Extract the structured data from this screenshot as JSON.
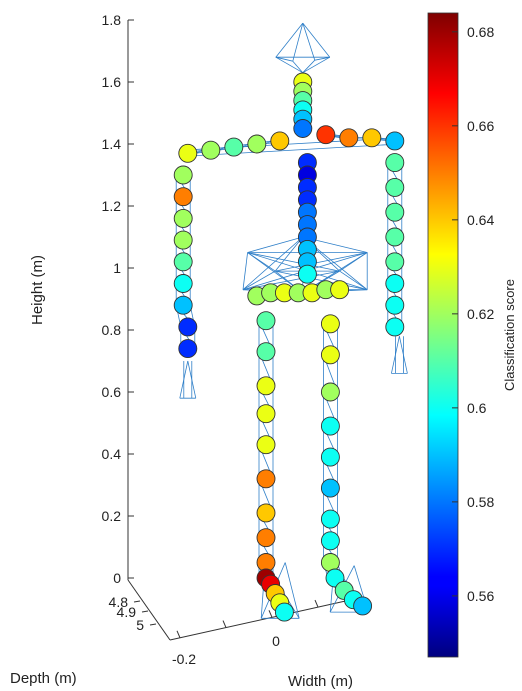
{
  "chart_data": {
    "type": "scatter",
    "subtype": "3d-skeleton-point-cloud",
    "title": "",
    "axes": {
      "z": {
        "label": "Height (m)",
        "range": [
          0,
          1.8
        ],
        "ticks": [
          "0",
          "0.2",
          "0.4",
          "0.6",
          "0.8",
          "1",
          "1.2",
          "1.4",
          "1.6",
          "1.8"
        ],
        "tick_values": [
          0,
          0.2,
          0.4,
          0.6,
          0.8,
          1,
          1.2,
          1.4,
          1.6,
          1.8
        ]
      },
      "depth": {
        "label": "Depth (m)",
        "ticks": [
          "4.8",
          "4.9",
          "5"
        ],
        "tick_values": [
          4.8,
          4.9,
          5
        ]
      },
      "width": {
        "label": "Width (m)",
        "ticks": [
          "-0.2",
          "0"
        ],
        "tick_values": [
          -0.2,
          0
        ]
      }
    },
    "colorbar": {
      "label": "Classification score",
      "range": [
        0.547,
        0.684
      ],
      "ticks": [
        "0.56",
        "0.58",
        "0.6",
        "0.62",
        "0.64",
        "0.66",
        "0.68"
      ],
      "tick_values": [
        0.56,
        0.58,
        0.6,
        0.62,
        0.64,
        0.66,
        0.68
      ],
      "colormap": "jet"
    },
    "grid": false,
    "colors": {
      "mesh": "#2f7fc8",
      "marker_edge": "#333333"
    },
    "joints": [
      {
        "part": "head",
        "x": -0.02,
        "h": 1.6,
        "score": 0.63
      },
      {
        "part": "head",
        "x": -0.02,
        "h": 1.57,
        "score": 0.62
      },
      {
        "part": "neck",
        "x": -0.02,
        "h": 1.54,
        "score": 0.61
      },
      {
        "part": "neck",
        "x": -0.02,
        "h": 1.51,
        "score": 0.6
      },
      {
        "part": "neck",
        "x": -0.02,
        "h": 1.48,
        "score": 0.59
      },
      {
        "part": "neck",
        "x": -0.02,
        "h": 1.45,
        "score": 0.58
      },
      {
        "part": "shoulder-left",
        "x": -0.07,
        "h": 1.41,
        "score": 0.64
      },
      {
        "part": "shoulder-left",
        "x": -0.12,
        "h": 1.4,
        "score": 0.62
      },
      {
        "part": "shoulder-left",
        "x": -0.17,
        "h": 1.39,
        "score": 0.61
      },
      {
        "part": "shoulder-left",
        "x": -0.22,
        "h": 1.38,
        "score": 0.62
      },
      {
        "part": "shoulder-left",
        "x": -0.27,
        "h": 1.37,
        "score": 0.63
      },
      {
        "part": "shoulder-right",
        "x": 0.03,
        "h": 1.43,
        "score": 0.66
      },
      {
        "part": "shoulder-right",
        "x": 0.08,
        "h": 1.42,
        "score": 0.65
      },
      {
        "part": "shoulder-right",
        "x": 0.13,
        "h": 1.42,
        "score": 0.64
      },
      {
        "part": "shoulder-right",
        "x": 0.18,
        "h": 1.41,
        "score": 0.59
      },
      {
        "part": "arm-left",
        "x": -0.28,
        "h": 1.3,
        "score": 0.62
      },
      {
        "part": "arm-left",
        "x": -0.28,
        "h": 1.23,
        "score": 0.65
      },
      {
        "part": "arm-left",
        "x": -0.28,
        "h": 1.16,
        "score": 0.62
      },
      {
        "part": "arm-left",
        "x": -0.28,
        "h": 1.09,
        "score": 0.62
      },
      {
        "part": "arm-left",
        "x": -0.28,
        "h": 1.02,
        "score": 0.61
      },
      {
        "part": "arm-left",
        "x": -0.28,
        "h": 0.95,
        "score": 0.6
      },
      {
        "part": "arm-left",
        "x": -0.28,
        "h": 0.88,
        "score": 0.59
      },
      {
        "part": "arm-left",
        "x": -0.27,
        "h": 0.81,
        "score": 0.57
      },
      {
        "part": "arm-left",
        "x": -0.27,
        "h": 0.74,
        "score": 0.57
      },
      {
        "part": "arm-right",
        "x": 0.18,
        "h": 1.34,
        "score": 0.61
      },
      {
        "part": "arm-right",
        "x": 0.18,
        "h": 1.26,
        "score": 0.61
      },
      {
        "part": "arm-right",
        "x": 0.18,
        "h": 1.18,
        "score": 0.61
      },
      {
        "part": "arm-right",
        "x": 0.18,
        "h": 1.1,
        "score": 0.61
      },
      {
        "part": "arm-right",
        "x": 0.18,
        "h": 1.02,
        "score": 0.61
      },
      {
        "part": "arm-right",
        "x": 0.18,
        "h": 0.95,
        "score": 0.6
      },
      {
        "part": "arm-right",
        "x": 0.18,
        "h": 0.88,
        "score": 0.6
      },
      {
        "part": "arm-right",
        "x": 0.18,
        "h": 0.81,
        "score": 0.6
      },
      {
        "part": "spine",
        "x": -0.01,
        "h": 1.34,
        "score": 0.57
      },
      {
        "part": "spine",
        "x": -0.01,
        "h": 1.3,
        "score": 0.56
      },
      {
        "part": "spine",
        "x": -0.01,
        "h": 1.26,
        "score": 0.57
      },
      {
        "part": "spine",
        "x": -0.01,
        "h": 1.22,
        "score": 0.57
      },
      {
        "part": "spine",
        "x": -0.01,
        "h": 1.18,
        "score": 0.58
      },
      {
        "part": "spine",
        "x": -0.01,
        "h": 1.14,
        "score": 0.58
      },
      {
        "part": "spine",
        "x": -0.01,
        "h": 1.1,
        "score": 0.58
      },
      {
        "part": "spine",
        "x": -0.01,
        "h": 1.06,
        "score": 0.59
      },
      {
        "part": "spine",
        "x": -0.01,
        "h": 1.02,
        "score": 0.59
      },
      {
        "part": "spine",
        "x": -0.01,
        "h": 0.98,
        "score": 0.6
      },
      {
        "part": "hips",
        "x": -0.12,
        "h": 0.91,
        "score": 0.62
      },
      {
        "part": "hips",
        "x": -0.09,
        "h": 0.92,
        "score": 0.62
      },
      {
        "part": "hips",
        "x": -0.06,
        "h": 0.92,
        "score": 0.63
      },
      {
        "part": "hips",
        "x": -0.03,
        "h": 0.92,
        "score": 0.62
      },
      {
        "part": "hips",
        "x": 0.0,
        "h": 0.92,
        "score": 0.63
      },
      {
        "part": "hips",
        "x": 0.03,
        "h": 0.93,
        "score": 0.62
      },
      {
        "part": "hips",
        "x": 0.06,
        "h": 0.93,
        "score": 0.63
      },
      {
        "part": "leg-left",
        "x": -0.1,
        "h": 0.83,
        "score": 0.61
      },
      {
        "part": "leg-left",
        "x": -0.1,
        "h": 0.73,
        "score": 0.61
      },
      {
        "part": "leg-left",
        "x": -0.1,
        "h": 0.62,
        "score": 0.63
      },
      {
        "part": "leg-left",
        "x": -0.1,
        "h": 0.53,
        "score": 0.63
      },
      {
        "part": "leg-left",
        "x": -0.1,
        "h": 0.43,
        "score": 0.63
      },
      {
        "part": "leg-left",
        "x": -0.1,
        "h": 0.32,
        "score": 0.65
      },
      {
        "part": "leg-left",
        "x": -0.1,
        "h": 0.21,
        "score": 0.64
      },
      {
        "part": "leg-left",
        "x": -0.1,
        "h": 0.13,
        "score": 0.65
      },
      {
        "part": "leg-left",
        "x": -0.1,
        "h": 0.05,
        "score": 0.65
      },
      {
        "part": "leg-left",
        "x": -0.1,
        "h": 0.0,
        "score": 0.68
      },
      {
        "part": "leg-left",
        "x": -0.09,
        "h": -0.02,
        "score": 0.67
      },
      {
        "part": "leg-left",
        "x": -0.08,
        "h": -0.05,
        "score": 0.64
      },
      {
        "part": "leg-left",
        "x": -0.07,
        "h": -0.08,
        "score": 0.63
      },
      {
        "part": "leg-left",
        "x": -0.06,
        "h": -0.11,
        "score": 0.6
      },
      {
        "part": "leg-right",
        "x": 0.04,
        "h": 0.82,
        "score": 0.63
      },
      {
        "part": "leg-right",
        "x": 0.04,
        "h": 0.72,
        "score": 0.63
      },
      {
        "part": "leg-right",
        "x": 0.04,
        "h": 0.6,
        "score": 0.62
      },
      {
        "part": "leg-right",
        "x": 0.04,
        "h": 0.49,
        "score": 0.6
      },
      {
        "part": "leg-right",
        "x": 0.04,
        "h": 0.39,
        "score": 0.6
      },
      {
        "part": "leg-right",
        "x": 0.04,
        "h": 0.29,
        "score": 0.59
      },
      {
        "part": "leg-right",
        "x": 0.04,
        "h": 0.19,
        "score": 0.6
      },
      {
        "part": "leg-right",
        "x": 0.04,
        "h": 0.12,
        "score": 0.6
      },
      {
        "part": "leg-right",
        "x": 0.04,
        "h": 0.05,
        "score": 0.62
      },
      {
        "part": "leg-right",
        "x": 0.05,
        "h": 0.0,
        "score": 0.6
      },
      {
        "part": "leg-right",
        "x": 0.07,
        "h": -0.04,
        "score": 0.61
      },
      {
        "part": "leg-right",
        "x": 0.09,
        "h": -0.07,
        "score": 0.6
      },
      {
        "part": "leg-right",
        "x": 0.11,
        "h": -0.09,
        "score": 0.59
      }
    ]
  }
}
